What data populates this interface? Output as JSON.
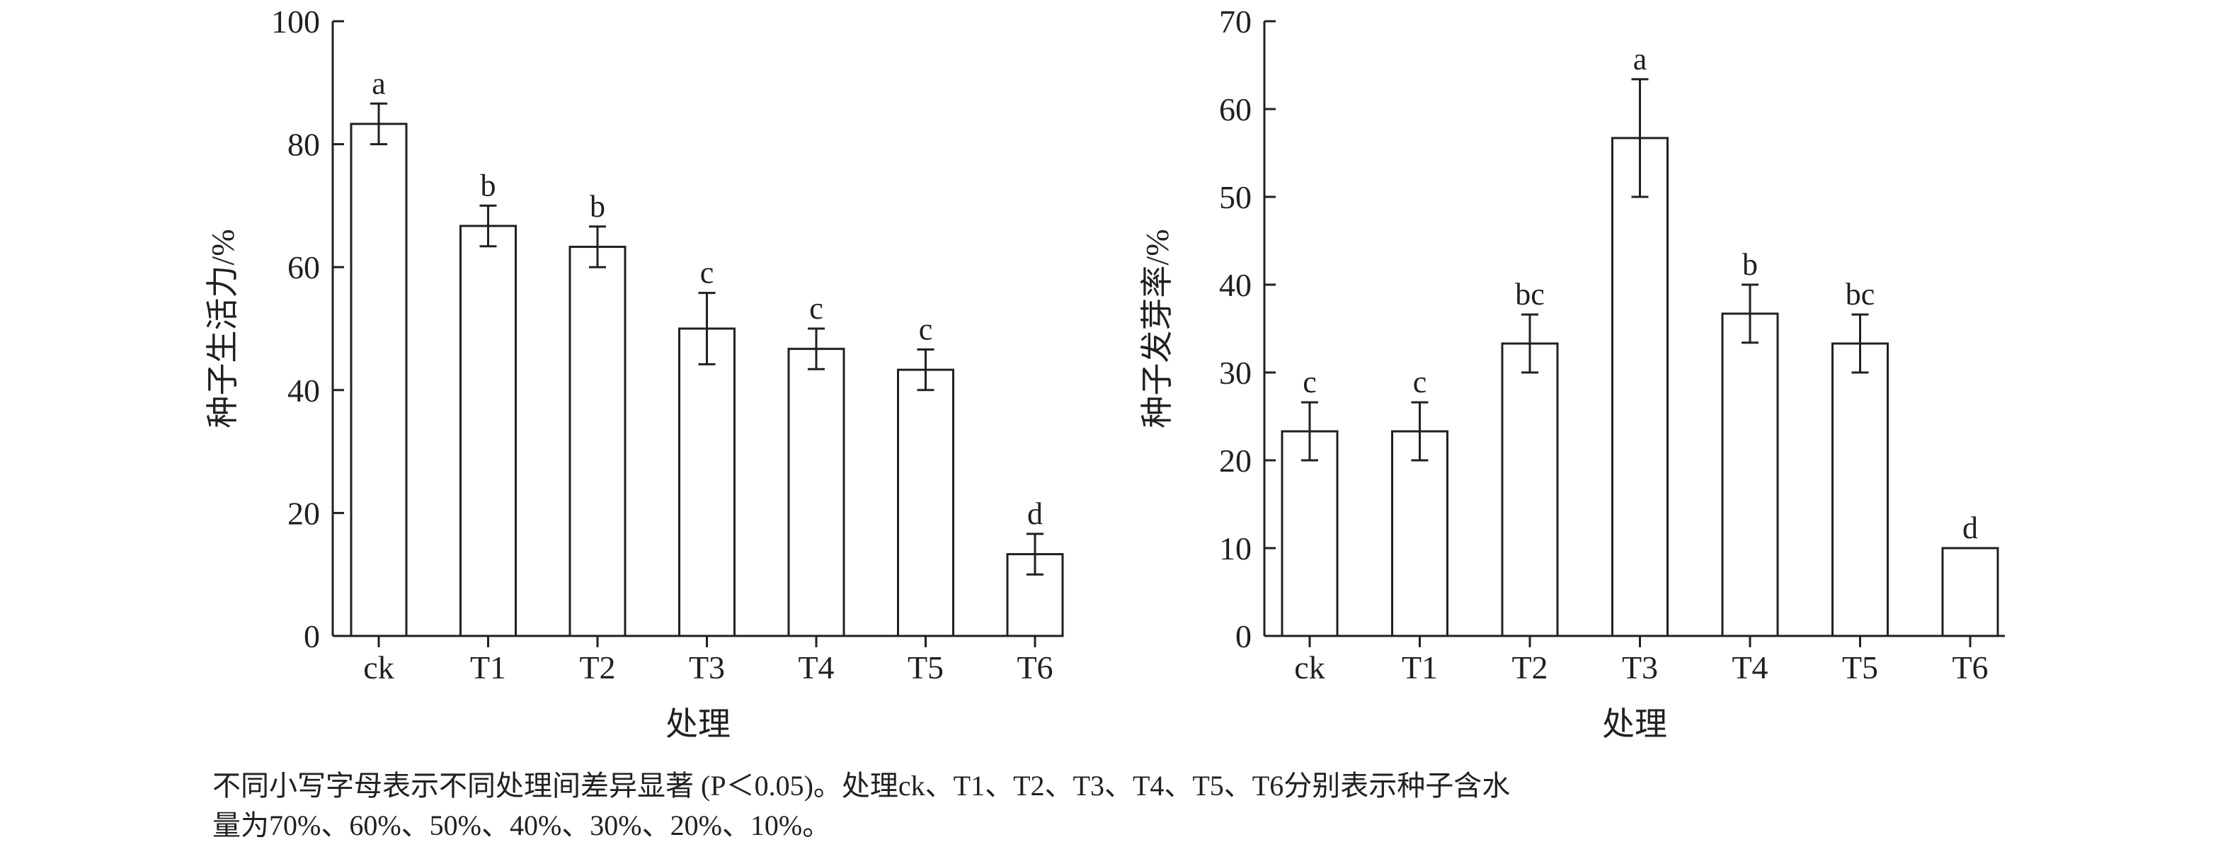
{
  "chart_data": [
    {
      "type": "bar",
      "xlabel": "处理",
      "ylabel": "种子生活力/%",
      "categories": [
        "ck",
        "T1",
        "T2",
        "T3",
        "T4",
        "T5",
        "T6"
      ],
      "values": [
        83.3,
        66.7,
        63.3,
        50.0,
        46.7,
        43.3,
        13.3
      ],
      "errors": [
        3.3,
        3.3,
        3.3,
        5.8,
        3.3,
        3.3,
        3.3
      ],
      "significance": [
        "a",
        "b",
        "b",
        "c",
        "c",
        "c",
        "d"
      ],
      "ylim": [
        0,
        100
      ],
      "yticks": [
        0,
        20,
        40,
        60,
        80,
        100
      ],
      "grid": false
    },
    {
      "type": "bar",
      "xlabel": "处理",
      "ylabel": "种子发芽率/%",
      "categories": [
        "ck",
        "T1",
        "T2",
        "T3",
        "T4",
        "T5",
        "T6"
      ],
      "values": [
        23.3,
        23.3,
        33.3,
        56.7,
        36.7,
        33.3,
        10.0
      ],
      "errors": [
        3.3,
        3.3,
        3.3,
        6.7,
        3.3,
        3.3,
        0
      ],
      "significance": [
        "c",
        "c",
        "bc",
        "a",
        "b",
        "bc",
        "d"
      ],
      "ylim": [
        0,
        70
      ],
      "yticks": [
        0,
        10,
        20,
        30,
        40,
        50,
        60,
        70
      ],
      "grid": false
    }
  ],
  "caption": {
    "line1": "不同小写字母表示不同处理间差异显著 (P＜0.05)。处理ck、T1、T2、T3、T4、T5、T6分别表示种子含水",
    "line2": "量为70%、60%、50%、40%、30%、20%、10%。"
  }
}
